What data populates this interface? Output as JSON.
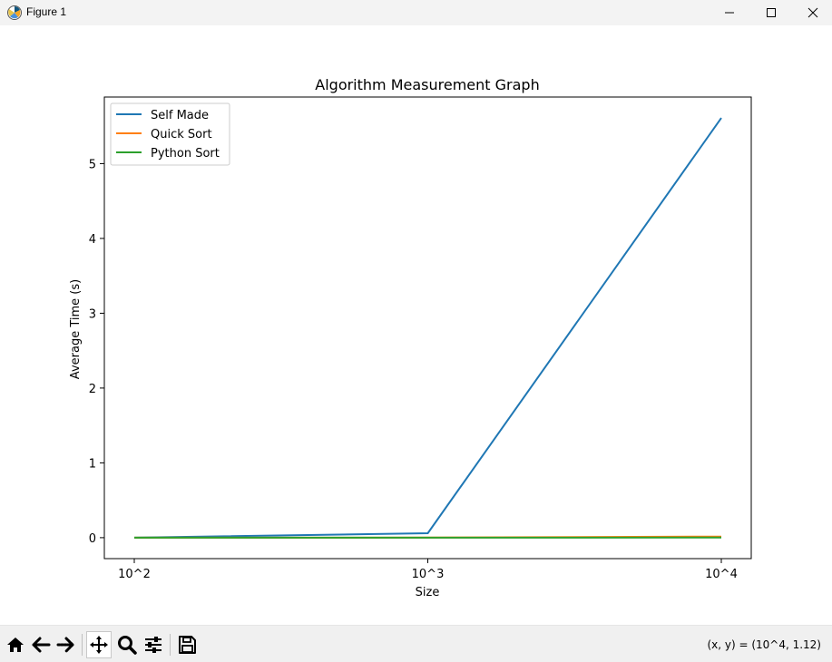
{
  "window": {
    "title": "Figure 1",
    "controls": [
      "minimize",
      "maximize",
      "close"
    ]
  },
  "toolbar": {
    "tools": [
      {
        "name": "home-icon",
        "label": "Home"
      },
      {
        "name": "back-arrow-icon",
        "label": "Back"
      },
      {
        "name": "forward-arrow-icon",
        "label": "Forward"
      },
      {
        "name": "pan-move-icon",
        "label": "Pan"
      },
      {
        "name": "zoom-magnifier-icon",
        "label": "Zoom"
      },
      {
        "name": "configure-sliders-icon",
        "label": "Configure subplots"
      },
      {
        "name": "save-floppy-icon",
        "label": "Save"
      }
    ],
    "coordinates": "(x, y) = (10^4, 1.12)"
  },
  "chart_data": {
    "type": "line",
    "title": "Algorithm Measurement Graph",
    "xlabel": "Size",
    "ylabel": "Average Time (s)",
    "categories": [
      "10^2",
      "10^3",
      "10^4"
    ],
    "series": [
      {
        "name": "Self Made",
        "color": "#1f77b4",
        "values": [
          0.0,
          0.06,
          5.61
        ]
      },
      {
        "name": "Quick Sort",
        "color": "#ff7f0e",
        "values": [
          0.0,
          0.001,
          0.015
        ]
      },
      {
        "name": "Python Sort",
        "color": "#2ca02c",
        "values": [
          0.0,
          0.0001,
          0.001
        ]
      }
    ],
    "yticks": [
      0,
      1,
      2,
      3,
      4,
      5
    ],
    "ylim": [
      -0.28,
      5.89
    ],
    "grid": false,
    "legend": "top-left"
  }
}
